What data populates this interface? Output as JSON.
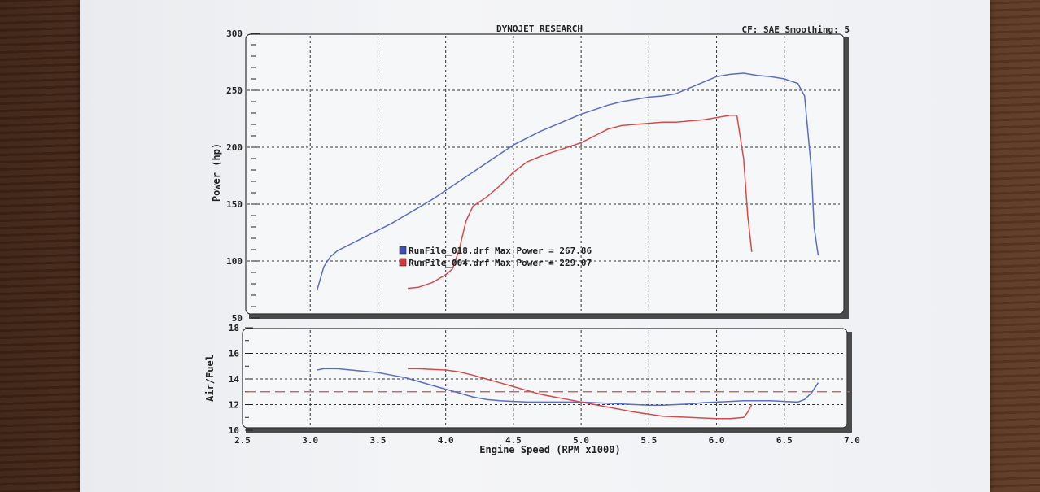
{
  "header": {
    "title": "DYNOJET RESEARCH",
    "settings": "CF: SAE  Smoothing: 5"
  },
  "chart_data": [
    {
      "type": "line",
      "ylabel": "Power (hp)",
      "ylim": [
        50,
        300
      ],
      "xlim": [
        2.5,
        7.0
      ],
      "yticks": [
        "50",
        "100",
        "150",
        "200",
        "250",
        "300"
      ],
      "grid": true,
      "legend": [
        {
          "name": "RunFile_018.drf Max Power = 267.86",
          "color": "#3a4fb8"
        },
        {
          "name": "RunFile_004.drf Max Power = 229.07",
          "color": "#d63a3a"
        }
      ],
      "series": [
        {
          "name": "RunFile_018.drf",
          "color": "#5a6ec8",
          "x": [
            3.05,
            3.1,
            3.15,
            3.2,
            3.3,
            3.4,
            3.5,
            3.6,
            3.7,
            3.8,
            3.9,
            4.0,
            4.1,
            4.2,
            4.3,
            4.4,
            4.5,
            4.6,
            4.7,
            4.8,
            4.9,
            5.0,
            5.1,
            5.2,
            5.3,
            5.4,
            5.5,
            5.6,
            5.7,
            5.8,
            5.9,
            6.0,
            6.1,
            6.2,
            6.3,
            6.4,
            6.5,
            6.55,
            6.6,
            6.65,
            6.7,
            6.72,
            6.75
          ],
          "y": [
            74,
            95,
            104,
            109,
            115,
            121,
            127,
            133,
            140,
            147,
            154,
            162,
            170,
            178,
            186,
            194,
            202,
            208,
            214,
            219,
            224,
            229,
            233,
            237,
            240,
            242,
            244,
            245,
            247,
            252,
            257,
            262,
            264,
            265,
            263,
            262,
            260,
            258,
            256,
            245,
            180,
            130,
            105
          ]
        },
        {
          "name": "RunFile_004.drf",
          "color": "#d84a4a",
          "x": [
            3.72,
            3.8,
            3.9,
            4.0,
            4.05,
            4.1,
            4.15,
            4.2,
            4.3,
            4.4,
            4.5,
            4.6,
            4.7,
            4.8,
            4.9,
            5.0,
            5.1,
            5.2,
            5.3,
            5.4,
            5.5,
            5.6,
            5.7,
            5.8,
            5.9,
            6.0,
            6.1,
            6.15,
            6.2,
            6.23,
            6.26
          ],
          "y": [
            76,
            77,
            81,
            88,
            93,
            110,
            135,
            148,
            156,
            166,
            178,
            187,
            192,
            196,
            200,
            204,
            210,
            216,
            219,
            220,
            221,
            222,
            222,
            223,
            224,
            226,
            228,
            228,
            190,
            140,
            108
          ]
        }
      ]
    },
    {
      "type": "line",
      "xlabel": "Engine Speed (RPM x1000)",
      "ylabel": "Air/Fuel",
      "ylim": [
        10,
        18
      ],
      "xlim": [
        2.5,
        7.0
      ],
      "xticks": [
        "2.5",
        "3.0",
        "3.5",
        "4.0",
        "4.5",
        "5.0",
        "5.5",
        "6.0",
        "6.5",
        "7.0"
      ],
      "yticks": [
        "10",
        "12",
        "14",
        "16",
        "18"
      ],
      "grid": true,
      "reference_line": {
        "y": 13.0,
        "color": "#d84a4a",
        "style": "dashed"
      },
      "series": [
        {
          "name": "RunFile_018.drf",
          "color": "#5a6ec8",
          "x": [
            3.05,
            3.1,
            3.2,
            3.3,
            3.4,
            3.5,
            3.6,
            3.7,
            3.8,
            3.9,
            4.0,
            4.1,
            4.2,
            4.3,
            4.4,
            4.5,
            4.6,
            4.7,
            4.8,
            4.9,
            5.0,
            5.1,
            5.2,
            5.3,
            5.4,
            5.5,
            5.6,
            5.7,
            5.8,
            5.9,
            6.0,
            6.1,
            6.2,
            6.3,
            6.4,
            6.5,
            6.6,
            6.65,
            6.7,
            6.75
          ],
          "y": [
            14.7,
            14.8,
            14.8,
            14.7,
            14.6,
            14.5,
            14.3,
            14.1,
            13.8,
            13.5,
            13.2,
            12.9,
            12.6,
            12.4,
            12.3,
            12.25,
            12.2,
            12.2,
            12.2,
            12.2,
            12.2,
            12.15,
            12.1,
            12.05,
            12.0,
            11.95,
            11.95,
            12.0,
            12.05,
            12.15,
            12.2,
            12.25,
            12.3,
            12.3,
            12.3,
            12.25,
            12.2,
            12.4,
            12.9,
            13.7
          ]
        },
        {
          "name": "RunFile_004.drf",
          "color": "#d84a4a",
          "x": [
            3.72,
            3.8,
            3.9,
            4.0,
            4.1,
            4.2,
            4.3,
            4.4,
            4.5,
            4.6,
            4.7,
            4.8,
            4.9,
            5.0,
            5.1,
            5.2,
            5.3,
            5.4,
            5.5,
            5.6,
            5.7,
            5.8,
            5.9,
            6.0,
            6.1,
            6.15,
            6.2,
            6.23,
            6.26
          ],
          "y": [
            14.8,
            14.8,
            14.75,
            14.7,
            14.55,
            14.3,
            14.0,
            13.7,
            13.4,
            13.1,
            12.8,
            12.6,
            12.4,
            12.2,
            12.0,
            11.8,
            11.6,
            11.4,
            11.25,
            11.1,
            11.05,
            11.0,
            10.95,
            10.9,
            10.9,
            10.95,
            11.0,
            11.4,
            12.0
          ]
        }
      ]
    }
  ]
}
